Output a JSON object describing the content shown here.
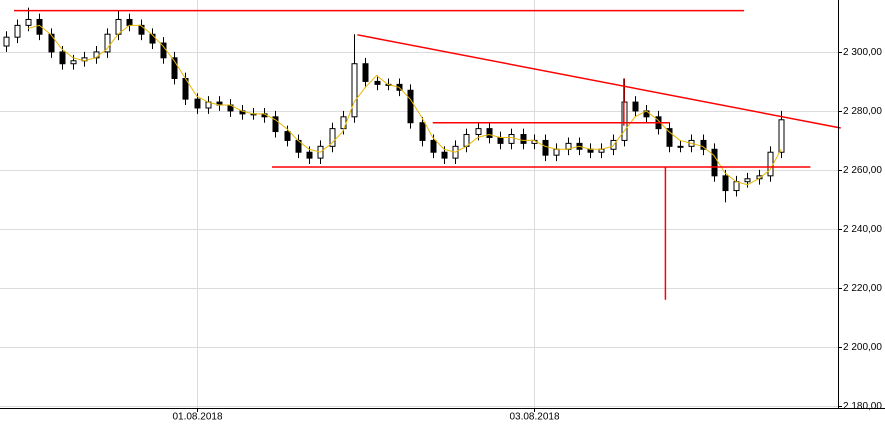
{
  "chart_data": {
    "type": "candlestick",
    "categories": [
      null,
      null,
      null,
      null,
      null,
      null,
      null,
      null,
      null,
      null,
      null,
      null,
      null,
      null,
      null,
      null,
      null,
      "01.08.2018",
      null,
      null,
      null,
      null,
      null,
      null,
      null,
      null,
      null,
      null,
      null,
      null,
      null,
      null,
      null,
      null,
      null,
      null,
      null,
      null,
      null,
      null,
      null,
      null,
      null,
      null,
      null,
      null,
      null,
      "03.08.2018",
      null,
      null,
      null,
      null,
      null,
      null,
      null,
      null,
      null,
      null,
      null,
      null,
      null,
      null,
      null,
      null,
      null,
      null,
      null,
      null,
      null,
      null
    ],
    "open": [
      2302,
      2305,
      2309,
      2311,
      2306,
      2300,
      2296,
      2297,
      2298,
      2300,
      2306,
      2311,
      2309,
      2306,
      2303,
      2298,
      2291,
      2284,
      2281,
      2283,
      2282,
      2280,
      2279,
      2279,
      2278,
      2273,
      2270,
      2266,
      2264,
      2268,
      2274,
      2278,
      2296,
      2290,
      2289,
      2289,
      2287,
      2276,
      2270,
      2266,
      2264,
      2268,
      2272,
      2274,
      2271,
      2269,
      2272,
      2269,
      2270,
      2265,
      2267,
      2269,
      2267,
      2266,
      2267,
      2270,
      2283,
      2280,
      2278,
      2274,
      2268,
      2268,
      2270,
      2267,
      2258,
      2253,
      2256,
      2257,
      2258,
      2266
    ],
    "high": [
      2307,
      2311,
      2315,
      2313,
      2308,
      2302,
      2299,
      2300,
      2302,
      2308,
      2314,
      2313,
      2311,
      2308,
      2305,
      2300,
      2293,
      2286,
      2285,
      2285,
      2284,
      2282,
      2281,
      2281,
      2280,
      2275,
      2272,
      2268,
      2270,
      2276,
      2280,
      2306,
      2298,
      2292,
      2291,
      2291,
      2289,
      2278,
      2272,
      2268,
      2270,
      2274,
      2276,
      2276,
      2273,
      2274,
      2274,
      2272,
      2272,
      2269,
      2271,
      2271,
      2269,
      2269,
      2272,
      2291,
      2285,
      2282,
      2280,
      2276,
      2270,
      2272,
      2272,
      2269,
      2260,
      2258,
      2259,
      2260,
      2268,
      2280
    ],
    "low": [
      2300,
      2303,
      2307,
      2304,
      2298,
      2294,
      2294,
      2295,
      2296,
      2298,
      2304,
      2307,
      2304,
      2301,
      2296,
      2289,
      2282,
      2279,
      2279,
      2280,
      2278,
      2277,
      2277,
      2276,
      2271,
      2268,
      2264,
      2262,
      2262,
      2266,
      2272,
      2276,
      2288,
      2287,
      2287,
      2285,
      2274,
      2268,
      2264,
      2262,
      2262,
      2266,
      2270,
      2269,
      2267,
      2267,
      2267,
      2267,
      2263,
      2263,
      2265,
      2265,
      2264,
      2264,
      2265,
      2268,
      2278,
      2276,
      2272,
      2266,
      2266,
      2266,
      2265,
      2256,
      2249,
      2251,
      2254,
      2255,
      2256,
      2264
    ],
    "close": [
      2305,
      2309,
      2311,
      2306,
      2300,
      2296,
      2297,
      2298,
      2300,
      2306,
      2311,
      2309,
      2306,
      2303,
      2298,
      2291,
      2284,
      2281,
      2283,
      2282,
      2280,
      2279,
      2279,
      2278,
      2273,
      2270,
      2266,
      2264,
      2268,
      2274,
      2278,
      2296,
      2290,
      2289,
      2289,
      2287,
      2276,
      2270,
      2266,
      2264,
      2268,
      2272,
      2274,
      2271,
      2269,
      2272,
      2269,
      2270,
      2265,
      2267,
      2269,
      2267,
      2266,
      2267,
      2270,
      2283,
      2280,
      2278,
      2274,
      2268,
      2268,
      2270,
      2267,
      2258,
      2253,
      2256,
      2257,
      2258,
      2266,
      2277
    ],
    "ma": [
      null,
      null,
      2308,
      2309,
      2306,
      2301,
      2298,
      2297,
      2298,
      2301,
      2306,
      2309,
      2309,
      2306,
      2302,
      2297,
      2291,
      2285,
      2283,
      2282,
      2282,
      2280,
      2279,
      2279,
      2277,
      2274,
      2270,
      2267,
      2266,
      2269,
      2273,
      2283,
      2288,
      2292,
      2289,
      2288,
      2284,
      2278,
      2271,
      2267,
      2266,
      2268,
      2271,
      2272,
      2271,
      2271,
      2270,
      2270,
      2268,
      2267,
      2267,
      2268,
      2267,
      2267,
      2268,
      2273,
      2278,
      2280,
      2277,
      2273,
      2270,
      2269,
      2268,
      2265,
      2259,
      2256,
      2255,
      2257,
      2260,
      2267
    ],
    "lines": [
      {
        "x": [
          0.75,
          65.7
        ],
        "y": [
          2314,
          2314
        ]
      },
      {
        "x": [
          31.3,
          74.3
        ],
        "y": [
          2305.8,
          2274.2
        ]
      },
      {
        "x": [
          23.7,
          71.6
        ],
        "y": [
          2261,
          2261
        ]
      },
      {
        "x": [
          38,
          59.1
        ],
        "y": [
          2276,
          2276
        ]
      },
      {
        "x": [
          58.7,
          58.7
        ],
        "y": [
          2261,
          2216
        ]
      },
      {
        "x": [
          55,
          55
        ],
        "y": [
          2291,
          2275
        ]
      }
    ],
    "up_color": "#ffffff",
    "down_color": "#000000",
    "ma_color": "#e8b800",
    "line_color": "#ff0000",
    "ylim": [
      2179.3,
      2317.6
    ],
    "yticks": [
      {
        "value": 2180,
        "label": "2 180,00"
      },
      {
        "value": 2200,
        "label": "2 200,00"
      },
      {
        "value": 2220,
        "label": "2 220,00"
      },
      {
        "value": 2240,
        "label": "2 240,00"
      },
      {
        "value": 2260,
        "label": "2 260,00"
      },
      {
        "value": 2280,
        "label": "2 280,00"
      },
      {
        "value": 2300,
        "label": "2 300,00"
      }
    ],
    "grid": true
  }
}
